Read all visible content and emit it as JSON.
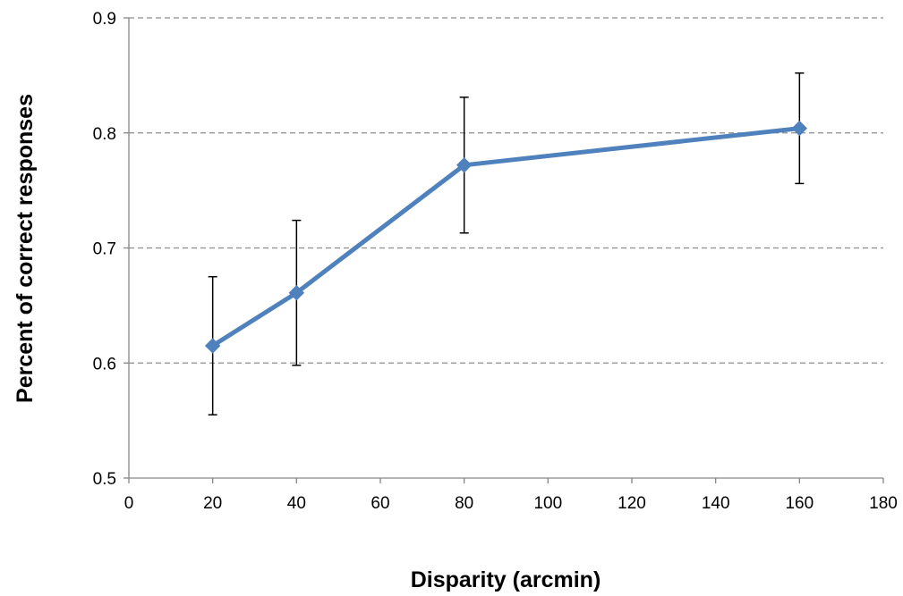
{
  "chart_data": {
    "type": "line",
    "title": "",
    "xlabel": "Disparity (arcmin)",
    "ylabel": "Percent of correct responses",
    "xlim": [
      0,
      180
    ],
    "ylim": [
      0.5,
      0.9
    ],
    "x_ticks": [
      0,
      20,
      40,
      60,
      80,
      100,
      120,
      140,
      160,
      180
    ],
    "y_ticks": [
      0.5,
      0.6,
      0.7,
      0.8,
      0.9
    ],
    "x_tick_labels": [
      "0",
      "20",
      "40",
      "60",
      "80",
      "100",
      "120",
      "140",
      "160",
      "180"
    ],
    "y_tick_labels": [
      "0.5",
      "0.6",
      "0.7",
      "0.8",
      "0.9"
    ],
    "grid": "horizontal-dashed",
    "series": [
      {
        "color": "#4f81bd",
        "marker": "diamond",
        "points": [
          {
            "x": 20,
            "y": 0.615,
            "err_low": 0.555,
            "err_high": 0.675
          },
          {
            "x": 40,
            "y": 0.661,
            "err_low": 0.598,
            "err_high": 0.724
          },
          {
            "x": 80,
            "y": 0.772,
            "err_low": 0.713,
            "err_high": 0.831
          },
          {
            "x": 160,
            "y": 0.804,
            "err_low": 0.756,
            "err_high": 0.852
          }
        ]
      }
    ]
  }
}
